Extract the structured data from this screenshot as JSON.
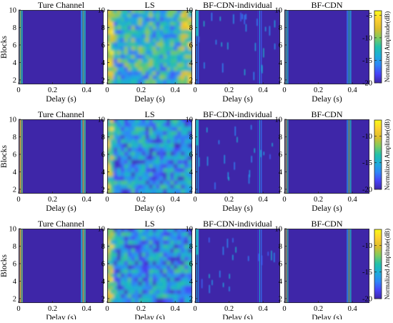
{
  "chart_data": {
    "type": "heatmap",
    "layout": {
      "rows": 3,
      "cols": 4
    },
    "xlabel": "Delay (s)",
    "ylabel": "Blocks",
    "colorbar_label": "Normalized Amplitude(dB)",
    "xlim": [
      0,
      0.5
    ],
    "ylim": [
      1.5,
      10
    ],
    "xticks": [
      0,
      0.2,
      0.4
    ],
    "xtick_labels": [
      "0",
      "0.2",
      "0.4"
    ],
    "yticks": [
      2,
      4,
      6,
      8,
      10
    ],
    "ytick_labels": [
      "2",
      "4",
      "6",
      "8",
      "10"
    ],
    "panel_titles": [
      "Ture Channel",
      "LS",
      "BF-CDN-individual",
      "BF-CDN"
    ],
    "colorbars": [
      {
        "clim": [
          -20,
          -4
        ],
        "ticks": [
          -5,
          -10,
          -15,
          -20
        ],
        "tick_labels": [
          "-5",
          "-10",
          "-15",
          "-20"
        ]
      },
      {
        "clim": [
          -20,
          -7
        ],
        "ticks": [
          -10,
          -15,
          -20
        ],
        "tick_labels": [
          "-10",
          "-15",
          "-20"
        ]
      },
      {
        "clim": [
          -20,
          -7
        ],
        "ticks": [
          -10,
          -15,
          -20
        ],
        "tick_labels": [
          "-10",
          "-15",
          "-20"
        ]
      }
    ],
    "colormap": [
      "#3e26a8",
      "#4743f8",
      "#2e87f7",
      "#1cadda",
      "#22c1aa",
      "#7fcb5e",
      "#dcbd2b",
      "#fdd02f",
      "#f9fb15"
    ],
    "background_level": -20,
    "paths": [
      {
        "delay": 0.01,
        "level": -10
      },
      {
        "delay": 0.02,
        "level": -12
      },
      {
        "delay": 0.37,
        "level": -15
      },
      {
        "delay": 0.38,
        "level": -11
      },
      {
        "delay": 0.39,
        "level": -13
      }
    ]
  }
}
